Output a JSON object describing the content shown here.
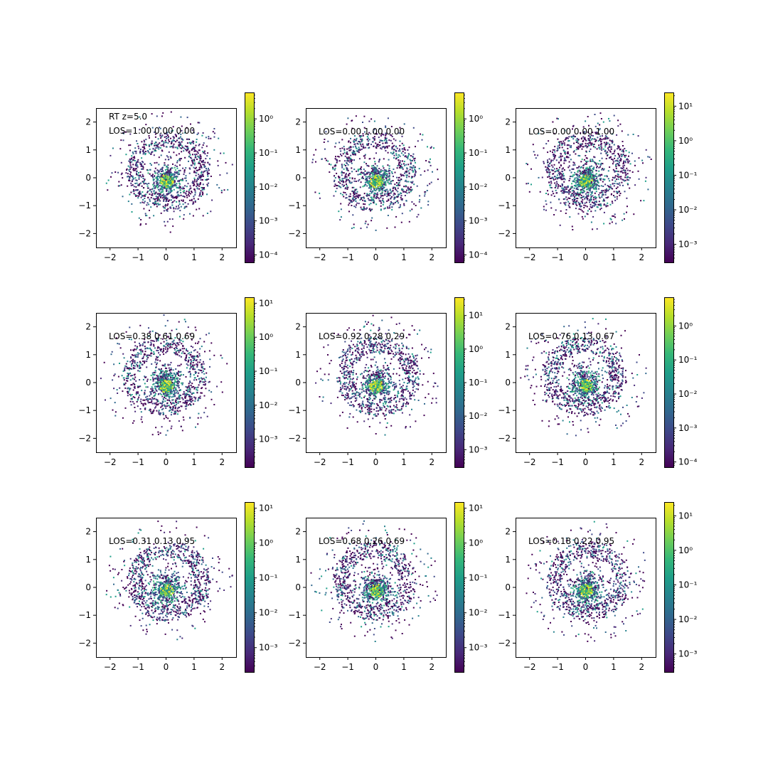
{
  "figure": {
    "colormap": [
      "#440154",
      "#482878",
      "#3e4989",
      "#31688e",
      "#26828e",
      "#1f9e89",
      "#35b779",
      "#6ece58",
      "#b5de2b",
      "#fde725"
    ],
    "axis_color": "#000000"
  },
  "chart_data": [
    {
      "type": "heatmap",
      "title": "",
      "xlabel": "",
      "ylabel": "",
      "xlim": [
        -2.5,
        2.5
      ],
      "ylim": [
        -2.5,
        2.5
      ],
      "x_ticks": [
        "−2",
        "−1",
        "0",
        "1",
        "2"
      ],
      "y_ticks": [
        "−2",
        "−1",
        "0",
        "1",
        "2"
      ],
      "annotations": [
        "RT z=5.0",
        "LOS=1.00 0.00 0.00"
      ],
      "colorbar": {
        "scale": "log",
        "range": [
          6e-05,
          6
        ],
        "tick_labels": [
          "10^-4",
          "10^-3",
          "10^-2",
          "10^-1",
          "10^0"
        ]
      }
    },
    {
      "type": "heatmap",
      "title": "",
      "xlabel": "",
      "ylabel": "",
      "xlim": [
        -2.5,
        2.5
      ],
      "ylim": [
        -2.5,
        2.5
      ],
      "x_ticks": [
        "−2",
        "−1",
        "0",
        "1",
        "2"
      ],
      "y_ticks": [
        "−2",
        "−1",
        "0",
        "1",
        "2"
      ],
      "annotations": [
        "LOS=0.00 1.00 0.00"
      ],
      "colorbar": {
        "scale": "log",
        "range": [
          6e-05,
          6
        ],
        "tick_labels": [
          "10^-4",
          "10^-3",
          "10^-2",
          "10^-1",
          "10^0"
        ]
      }
    },
    {
      "type": "heatmap",
      "title": "",
      "xlabel": "",
      "ylabel": "",
      "xlim": [
        -2.5,
        2.5
      ],
      "ylim": [
        -2.5,
        2.5
      ],
      "x_ticks": [
        "−2",
        "−1",
        "0",
        "1",
        "2"
      ],
      "y_ticks": [
        "−2",
        "−1",
        "0",
        "1",
        "2"
      ],
      "annotations": [
        "LOS=0.00 0.00 1.00"
      ],
      "colorbar": {
        "scale": "log",
        "range": [
          0.0003,
          25
        ],
        "tick_labels": [
          "10^-3",
          "10^-2",
          "10^-1",
          "10^0",
          "10^1"
        ]
      }
    },
    {
      "type": "heatmap",
      "title": "",
      "xlabel": "",
      "ylabel": "",
      "xlim": [
        -2.5,
        2.5
      ],
      "ylim": [
        -2.5,
        2.5
      ],
      "x_ticks": [
        "−2",
        "−1",
        "0",
        "1",
        "2"
      ],
      "y_ticks": [
        "−2",
        "−1",
        "0",
        "1",
        "2"
      ],
      "annotations": [
        "LOS=0.38 0.61 0.69"
      ],
      "colorbar": {
        "scale": "log",
        "range": [
          0.00015,
          15
        ],
        "tick_labels": [
          "10^-3",
          "10^-2",
          "10^-1",
          "10^0",
          "10^1"
        ]
      }
    },
    {
      "type": "heatmap",
      "title": "",
      "xlabel": "",
      "ylabel": "",
      "xlim": [
        -2.5,
        2.5
      ],
      "ylim": [
        -2.5,
        2.5
      ],
      "x_ticks": [
        "−2",
        "−1",
        "0",
        "1",
        "2"
      ],
      "y_ticks": [
        "−2",
        "−1",
        "0",
        "1",
        "2"
      ],
      "annotations": [
        "LOS=0.92 0.28 0.29"
      ],
      "colorbar": {
        "scale": "log",
        "range": [
          0.0003,
          35
        ],
        "tick_labels": [
          "10^-3",
          "10^-2",
          "10^-1",
          "10^0",
          "10^1"
        ]
      }
    },
    {
      "type": "heatmap",
      "title": "",
      "xlabel": "",
      "ylabel": "",
      "xlim": [
        -2.5,
        2.5
      ],
      "ylim": [
        -2.5,
        2.5
      ],
      "x_ticks": [
        "−2",
        "−1",
        "0",
        "1",
        "2"
      ],
      "y_ticks": [
        "−2",
        "−1",
        "0",
        "1",
        "2"
      ],
      "annotations": [
        "LOS=0.76 0.13 0.67"
      ],
      "colorbar": {
        "scale": "log",
        "range": [
          7e-05,
          7
        ],
        "tick_labels": [
          "10^-4",
          "10^-3",
          "10^-2",
          "10^-1",
          "10^0"
        ]
      }
    },
    {
      "type": "heatmap",
      "title": "",
      "xlabel": "",
      "ylabel": "",
      "xlim": [
        -2.5,
        2.5
      ],
      "ylim": [
        -2.5,
        2.5
      ],
      "x_ticks": [
        "−2",
        "−1",
        "0",
        "1",
        "2"
      ],
      "y_ticks": [
        "−2",
        "−1",
        "0",
        "1",
        "2"
      ],
      "annotations": [
        "LOS=0.31 0.13 0.95"
      ],
      "colorbar": {
        "scale": "log",
        "range": [
          0.0002,
          15
        ],
        "tick_labels": [
          "10^-3",
          "10^-2",
          "10^-1",
          "10^0",
          "10^1"
        ]
      }
    },
    {
      "type": "heatmap",
      "title": "",
      "xlabel": "",
      "ylabel": "",
      "xlim": [
        -2.5,
        2.5
      ],
      "ylim": [
        -2.5,
        2.5
      ],
      "x_ticks": [
        "−2",
        "−1",
        "0",
        "1",
        "2"
      ],
      "y_ticks": [
        "−2",
        "−1",
        "0",
        "1",
        "2"
      ],
      "annotations": [
        "LOS=0.68 0.26 0.69"
      ],
      "colorbar": {
        "scale": "log",
        "range": [
          0.0002,
          15
        ],
        "tick_labels": [
          "10^-3",
          "10^-2",
          "10^-1",
          "10^0",
          "10^1"
        ]
      }
    },
    {
      "type": "heatmap",
      "title": "",
      "xlabel": "",
      "ylabel": "",
      "xlim": [
        -2.5,
        2.5
      ],
      "ylim": [
        -2.5,
        2.5
      ],
      "x_ticks": [
        "−2",
        "−1",
        "0",
        "1",
        "2"
      ],
      "y_ticks": [
        "−2",
        "−1",
        "0",
        "1",
        "2"
      ],
      "annotations": [
        "LOS=0.18 0.22 0.95"
      ],
      "colorbar": {
        "scale": "log",
        "range": [
          0.0003,
          25
        ],
        "tick_labels": [
          "10^-3",
          "10^-2",
          "10^-1",
          "10^0",
          "10^1"
        ]
      }
    }
  ]
}
